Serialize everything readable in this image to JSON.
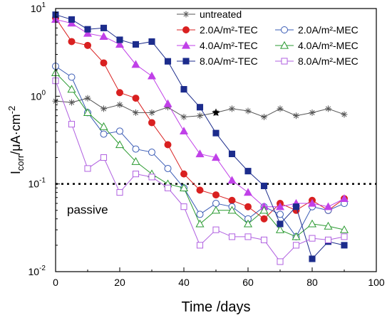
{
  "chart_data": {
    "type": "scatter",
    "xlabel": "Time /days",
    "ylabel": {
      "main": "I",
      "sub": "corr",
      "rest": "/μA·cm",
      "sup": "-2"
    },
    "xlim": [
      0,
      100
    ],
    "ylim": [
      0.01,
      10
    ],
    "yscale": "log",
    "xticks": [
      0,
      20,
      40,
      60,
      80,
      100
    ],
    "yticks": [
      {
        "value": 10,
        "base": "10",
        "exp": "1"
      },
      {
        "value": 1,
        "base": "10",
        "exp": "0"
      },
      {
        "value": 0.1,
        "base": "10",
        "exp": "-1"
      },
      {
        "value": 0.01,
        "base": "10",
        "exp": "-2"
      }
    ],
    "grid": false,
    "legend_position": "top-right",
    "threshold": {
      "value": 0.1,
      "label": "passive"
    },
    "star_point": {
      "x": 50,
      "y": 0.65
    },
    "series": [
      {
        "name": "untreated",
        "marker": "asterisk",
        "color": "#555555",
        "x": [
          0,
          5,
          10,
          15,
          20,
          25,
          30,
          35,
          40,
          45,
          50,
          55,
          60,
          65,
          70,
          75,
          80,
          85,
          90
        ],
        "y": [
          0.88,
          0.85,
          0.95,
          0.72,
          0.8,
          0.65,
          0.65,
          0.75,
          0.58,
          0.6,
          0.65,
          0.72,
          0.68,
          0.58,
          0.72,
          0.6,
          0.65,
          0.72,
          0.62
        ]
      },
      {
        "name": "2.0A/m²-TEC",
        "marker": "circle-filled",
        "color": "#d92020",
        "x": [
          0,
          5,
          10,
          15,
          20,
          25,
          30,
          35,
          40,
          45,
          50,
          55,
          60,
          65,
          70,
          75,
          80,
          85,
          90
        ],
        "y": [
          7.8,
          4.2,
          3.8,
          2.4,
          1.1,
          0.95,
          0.5,
          0.28,
          0.13,
          0.085,
          0.075,
          0.065,
          0.055,
          0.04,
          0.06,
          0.05,
          0.065,
          0.05,
          0.068
        ]
      },
      {
        "name": "2.0A/m²-MEC",
        "marker": "circle-open",
        "color": "#3a5bb5",
        "x": [
          0,
          5,
          10,
          15,
          20,
          25,
          30,
          35,
          40,
          45,
          50,
          55,
          60,
          65,
          70,
          75,
          80,
          85,
          90
        ],
        "y": [
          2.2,
          1.65,
          0.65,
          0.37,
          0.4,
          0.25,
          0.23,
          0.15,
          0.09,
          0.045,
          0.06,
          0.055,
          0.04,
          0.055,
          0.045,
          0.025,
          0.055,
          0.05,
          0.06
        ]
      },
      {
        "name": "4.0A/m²-TEC",
        "marker": "triangle-filled",
        "color": "#c040e8",
        "x": [
          0,
          5,
          10,
          15,
          20,
          25,
          30,
          35,
          40,
          45,
          50,
          55,
          60,
          65,
          70,
          75,
          80,
          85,
          90
        ],
        "y": [
          7.5,
          6.8,
          5.2,
          4.8,
          3.9,
          2.3,
          1.7,
          0.82,
          0.4,
          0.22,
          0.2,
          0.11,
          0.08,
          0.055,
          0.055,
          0.06,
          0.06,
          0.055,
          0.068
        ]
      },
      {
        "name": "4.0A/m²-MEC",
        "marker": "triangle-open",
        "color": "#2a9a30",
        "x": [
          0,
          5,
          10,
          15,
          20,
          25,
          30,
          35,
          40,
          45,
          50,
          55,
          60,
          65,
          70,
          75,
          80,
          85,
          90
        ],
        "y": [
          1.85,
          1.2,
          0.65,
          0.45,
          0.28,
          0.18,
          0.13,
          0.1,
          0.09,
          0.035,
          0.05,
          0.05,
          0.035,
          0.05,
          0.03,
          0.025,
          0.035,
          0.033,
          0.03
        ]
      },
      {
        "name": "8.0A/m²-TEC",
        "marker": "square-filled",
        "color": "#1c2c8c",
        "x": [
          0,
          5,
          10,
          15,
          20,
          25,
          30,
          35,
          40,
          45,
          50,
          55,
          60,
          65,
          70,
          75,
          80,
          85,
          90
        ],
        "y": [
          8.5,
          7.5,
          5.8,
          6.0,
          4.4,
          3.9,
          4.2,
          2.5,
          1.2,
          0.75,
          0.38,
          0.22,
          0.14,
          0.095,
          0.035,
          0.055,
          0.014,
          0.022,
          0.02
        ]
      },
      {
        "name": "8.0A/m²-MEC",
        "marker": "square-open",
        "color": "#b060e0",
        "x": [
          0,
          5,
          10,
          15,
          20,
          25,
          30,
          35,
          40,
          45,
          50,
          55,
          60,
          65,
          70,
          75,
          80,
          85,
          90
        ],
        "y": [
          1.5,
          0.48,
          0.15,
          0.2,
          0.08,
          0.13,
          0.12,
          0.09,
          0.055,
          0.02,
          0.03,
          0.025,
          0.025,
          0.023,
          0.013,
          0.02,
          0.024,
          0.023,
          0.025
        ]
      }
    ]
  }
}
